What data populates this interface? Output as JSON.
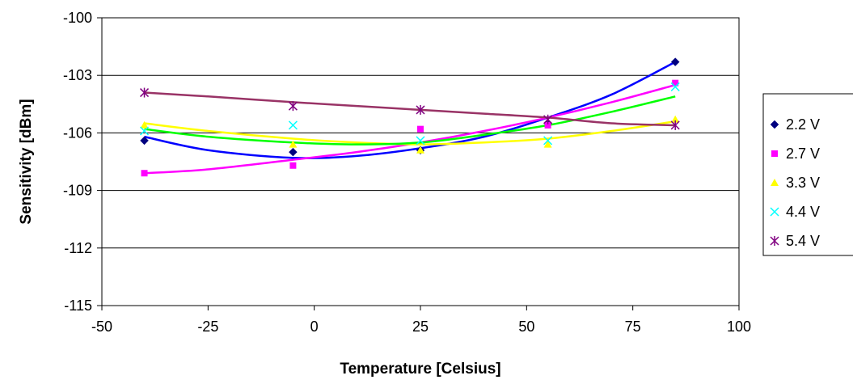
{
  "chart_data": {
    "type": "scatter",
    "title": "",
    "xlabel": "Temperature [Celsius]",
    "ylabel": "Sensitivity [dBm]",
    "xlim": [
      -50,
      100
    ],
    "ylim": [
      -115,
      -100
    ],
    "xticks": [
      -50,
      -25,
      0,
      25,
      50,
      75,
      100
    ],
    "yticks": [
      -100,
      -103,
      -106,
      -109,
      -112,
      -115
    ],
    "xtick_labels": [
      "-50",
      "-25",
      "0",
      "25",
      "50",
      "75",
      "100"
    ],
    "ytick_labels": [
      "-100",
      "-103",
      "-106",
      "-109",
      "-112",
      "-115"
    ],
    "grid": "horizontal",
    "legend_position": "right",
    "trendlines": true,
    "series": [
      {
        "name": "2.2 V",
        "marker": "diamond",
        "marker_color": "#000080",
        "line_color": "#0000ff",
        "x": [
          -40,
          -5,
          25,
          55,
          85
        ],
        "y": [
          -106.4,
          -107.0,
          -106.9,
          -105.5,
          -102.3
        ],
        "trend": [
          [
            -40,
            -106.2
          ],
          [
            -25,
            -106.9
          ],
          [
            -5,
            -107.3
          ],
          [
            10,
            -107.2
          ],
          [
            25,
            -106.8
          ],
          [
            40,
            -106.2
          ],
          [
            55,
            -105.2
          ],
          [
            70,
            -104.0
          ],
          [
            85,
            -102.3
          ]
        ]
      },
      {
        "name": "2.7 V",
        "marker": "square",
        "marker_color": "#ff00ff",
        "line_color": "#ff00ff",
        "x": [
          -40,
          -5,
          25,
          55,
          85
        ],
        "y": [
          -108.1,
          -107.7,
          -105.8,
          -105.6,
          -103.4
        ],
        "trend": [
          [
            -40,
            -108.1
          ],
          [
            -25,
            -107.9
          ],
          [
            -5,
            -107.4
          ],
          [
            10,
            -107.0
          ],
          [
            25,
            -106.5
          ],
          [
            40,
            -105.9
          ],
          [
            55,
            -105.2
          ],
          [
            70,
            -104.4
          ],
          [
            85,
            -103.5
          ]
        ]
      },
      {
        "name": "3.3 V",
        "marker": "triangle",
        "marker_color": "#ffff00",
        "line_color": "#ffff00",
        "x": [
          -40,
          -5,
          25,
          55,
          85
        ],
        "y": [
          -105.6,
          -106.6,
          -106.9,
          -106.6,
          -105.3
        ],
        "trend": [
          [
            -40,
            -105.5
          ],
          [
            -25,
            -105.9
          ],
          [
            -5,
            -106.3
          ],
          [
            10,
            -106.5
          ],
          [
            25,
            -106.6
          ],
          [
            40,
            -106.5
          ],
          [
            55,
            -106.3
          ],
          [
            70,
            -105.9
          ],
          [
            85,
            -105.4
          ]
        ]
      },
      {
        "name": "4.4 V",
        "marker": "x",
        "marker_color": "#00ffff",
        "line_color": "#00ff00",
        "x": [
          -40,
          -5,
          25,
          55,
          85
        ],
        "y": [
          -105.9,
          -105.6,
          -106.4,
          -106.4,
          -103.6
        ],
        "trend": [
          [
            -40,
            -105.8
          ],
          [
            -25,
            -106.2
          ],
          [
            -5,
            -106.5
          ],
          [
            10,
            -106.6
          ],
          [
            25,
            -106.5
          ],
          [
            40,
            -106.1
          ],
          [
            55,
            -105.6
          ],
          [
            70,
            -104.9
          ],
          [
            85,
            -104.1
          ]
        ]
      },
      {
        "name": "5.4 V",
        "marker": "asterisk",
        "marker_color": "#800080",
        "line_color": "#993366",
        "x": [
          -40,
          -5,
          25,
          55,
          85
        ],
        "y": [
          -103.9,
          -104.6,
          -104.8,
          -105.3,
          -105.6
        ],
        "trend": [
          [
            -40,
            -103.9
          ],
          [
            -25,
            -104.1
          ],
          [
            -5,
            -104.4
          ],
          [
            10,
            -104.6
          ],
          [
            25,
            -104.8
          ],
          [
            40,
            -105.0
          ],
          [
            55,
            -105.2
          ],
          [
            70,
            -105.5
          ],
          [
            85,
            -105.6
          ]
        ]
      }
    ]
  }
}
